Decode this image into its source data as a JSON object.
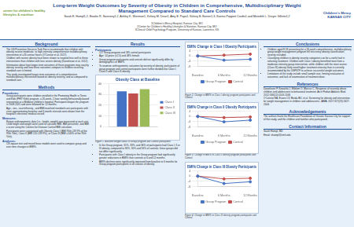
{
  "header": {
    "title": "Long-term Weight Outcomes by Severity of Obesity in Children in Comprehensive, Multidisciplinary Weight Management Compared to Standard Care Controls",
    "authors": "Sarah E. Hampl1,2, Brooke R. Sweeney1,2, Ashley K. Sherman1, Kelsey M. Dean1, Amy E. Papa1, Kelsey B. Borner1,3, Katrina Poppert Cordts1 and Meredith L. Dreyer Gillette1,2",
    "affiliations": [
      "1Children's Mercy Hospital, Kansas City, MO",
      "2Center for Children's Healthy Lifestyles & Nutrition, Kansas City, MO",
      "3Clinical Child Psychology Program, University of Kansas, Lawrence, KS"
    ],
    "logo_left": "center for children's healthy lifestyles & nutrition",
    "logo_right": "Children's Mercy KANSAS CITY"
  },
  "columns": [
    [
      {
        "heading": "Background",
        "bullets": [
          "The US Preventive Services Task Force recommends that children with obesity receive moderate- to high-intensity comprehensive multidisciplinary intervention of ≥26 contact hours (O'Connor et al. 2017).",
          "Children with severe obesity have been shown to respond less well to these interventions than children with less severe obesity (Danielsson et al. 2012).",
          "Information about how longer-term outcomes of these programs may vary by obesity severity and how these outcomes compare to children receiving standard care is limited.",
          "This study investigated longer-term outcomes of a comprehensive multidisciplinary intervention based on obesity severity, and as compared to standard care."
        ]
      },
      {
        "heading": "Methods",
        "subsections": [
          {
            "subheading": "Procedures:",
            "bullets": [
              "Group participants were children enrolled in the Promoting Health in Teens and Kids (PHIT Kids) program, a 26-week, 2-hour weekly behaviorally-based intervention at a Midwest children's hospital. Participants began the program in 2008-2015 and were followed for 12 months.",
              "Age-, sex-, race/ethnicity-, and BMI-matched standard care participants with visits approximating baseline and 6-month intervals were drawn from the hospital's electronic medical record."
            ]
          },
          {
            "subheading": "Measures:",
            "bullets": [
              "Patient anthropometric data (i.e., height, weight) was measured at each visit. Child height and weight were used to calculate BMI, BMI percentile, and BMI z-score using the Centers for Disease Control BMI calculator.",
              "Participants were categorized with Obesity Class I (BMI 95th-119.9% of the 95th %ile), Class II (BMI 120-139.9%), or Class III (BMI ≥140% of the 95th %ile)."
            ]
          },
          {
            "subheading": "Analyses:",
            "bullets": [
              "Chi-square test and mixed linear models were used to compare group and over-time changes in BMI%."
            ]
          }
        ]
      }
    ],
    [
      {
        "heading": "Results",
        "subheading": "Participants",
        "bullets": [
          "127 Group program and 185 control participants",
          "Age: 14 years (±2.5) and 48% female",
          "Group program participants and controls did not significantly differ by demographics or BMI%",
          "To examine anthropometric outcomes by severity of obesity, participants of group program and control participants were further divided into Class I, Class II and Class III obesity."
        ],
        "chart": 0,
        "caption": "Figure 1. Baseline weight status of Group program and Control participants",
        "after": [
          "In the Group program, 31%, 33%, and 36% of participants had Class I, II or III obesity, compared to 36%, 30% and 34% of controls; these groups did not differ significantly.",
          "Participants with Class I obesity in the Group program had significantly greater reductions in BMI% than controls at 6 and 12 months.",
          "BMI% declines were significantly improved from baseline to 6 months for Group program participants in all classes of obesity."
        ]
      }
    ],
    [
      {
        "chart": 1,
        "caption": "Figure 2. Change in BMI% in Class I obesity program participants and Control."
      },
      {
        "chart": 2,
        "caption": "Figure 3. Change in BMI% in Class II obesity program participants and Control."
      },
      {
        "chart": 3,
        "caption": "Figure 4. Change in BMI% in Class III obesity program participants and Control."
      }
    ],
    [
      {
        "heading": "Conclusions",
        "bullets": [
          "Children aged 8-18 presenting for a 26-week comprehensive, multidisciplinary group weight management program fell into every obesity classification, severity included.",
          "Classifying children in obesity severity categories can be a useful tool in selecting treatment. Children with Class I obesity benefited most from a moderate-intensity group intervention, while children with the most severe (Class III) obesity likely need higher treatment intensity than is currently recommended by the USPSTF to achieve successful weight outcomes.",
          "Limitations of the study include small sample size, limiting evaluation of outcomes, and lack of examination of treatment dose."
        ]
      },
      {
        "heading": "References",
        "items": [
          "Danielsson P, Kowalski J, Ekblom O, Marcus C. Response of severely obese children and adolescents to behavioral treatment. Arch Pediatr Adolesc Med. 2012;166(12):1103-1108.",
          "O'Connor EA, Evans CV, Burda BU, et al. Screening for obesity and intervention for weight management in children and adolescents. JAMA. 2017;317(23):2427-2444."
        ]
      },
      {
        "heading": "Acknowledgements",
        "paragraphs": [
          "The authors thank the Healthcare Foundation of Greater Kansas City for support of this study, and the children and families who participated."
        ]
      },
      {
        "heading": "Contact Information",
        "paragraphs": [
          "Sarah Hampl, MD",
          "Email: shampl@cmh.edu"
        ]
      }
    ]
  ],
  "chart_data": [
    {
      "type": "bar",
      "title": "Obesity Class at Baseline",
      "categories": [
        null
      ],
      "series": [
        {
          "name": "Class I",
          "color": "#4472c4",
          "values": [
            33
          ]
        },
        {
          "name": "Class II",
          "color": "#c0504d",
          "values": [
            31
          ]
        },
        {
          "name": "Class III",
          "color": "#9bbb59",
          "values": [
            35
          ]
        }
      ],
      "ylim": [
        0,
        40
      ],
      "yticks": [
        0,
        10,
        20,
        30,
        40
      ],
      "grid": true,
      "legend": "right"
    },
    {
      "type": "line",
      "title": "BMI% Change in Class I Obesity Participants",
      "categories": [
        "Baseline",
        "6 Months",
        "12 Months"
      ],
      "series": [
        {
          "name": "Group Program",
          "color": "#4472c4",
          "values": [
            0,
            -3.2,
            -2.5
          ]
        },
        {
          "name": "Control",
          "color": "#c0504d",
          "values": [
            0,
            0.6,
            1.4
          ]
        }
      ],
      "ylim": [
        -8,
        4
      ],
      "yticks": [
        -8,
        -4,
        0,
        4
      ],
      "grid": true,
      "legend": "bottom"
    },
    {
      "type": "line",
      "title": "BMI% Change in Class II Obesity Participants",
      "categories": [
        "Baseline",
        "6 Months",
        "12 Months"
      ],
      "series": [
        {
          "name": "Group Program",
          "color": "#4472c4",
          "values": [
            0,
            -4.1,
            -2.8
          ]
        },
        {
          "name": "Control",
          "color": "#c0504d",
          "values": [
            0,
            -0.9,
            -0.4
          ]
        }
      ],
      "ylim": [
        -8,
        4
      ],
      "yticks": [
        -8,
        -4,
        0,
        4
      ],
      "grid": true,
      "legend": "bottom"
    },
    {
      "type": "line",
      "title": "BMI% Change in Class III Obesity Participants",
      "categories": [
        "Baseline",
        "6 Months",
        "12 Months"
      ],
      "series": [
        {
          "name": "Group Program",
          "color": "#4472c4",
          "values": [
            0,
            -5.6,
            -4.3
          ]
        },
        {
          "name": "Control",
          "color": "#c0504d",
          "values": [
            0,
            -2.1,
            -1.6
          ]
        }
      ],
      "ylim": [
        -8,
        4
      ],
      "yticks": [
        -8,
        -4,
        0,
        4
      ],
      "grid": true,
      "legend": "bottom"
    }
  ]
}
